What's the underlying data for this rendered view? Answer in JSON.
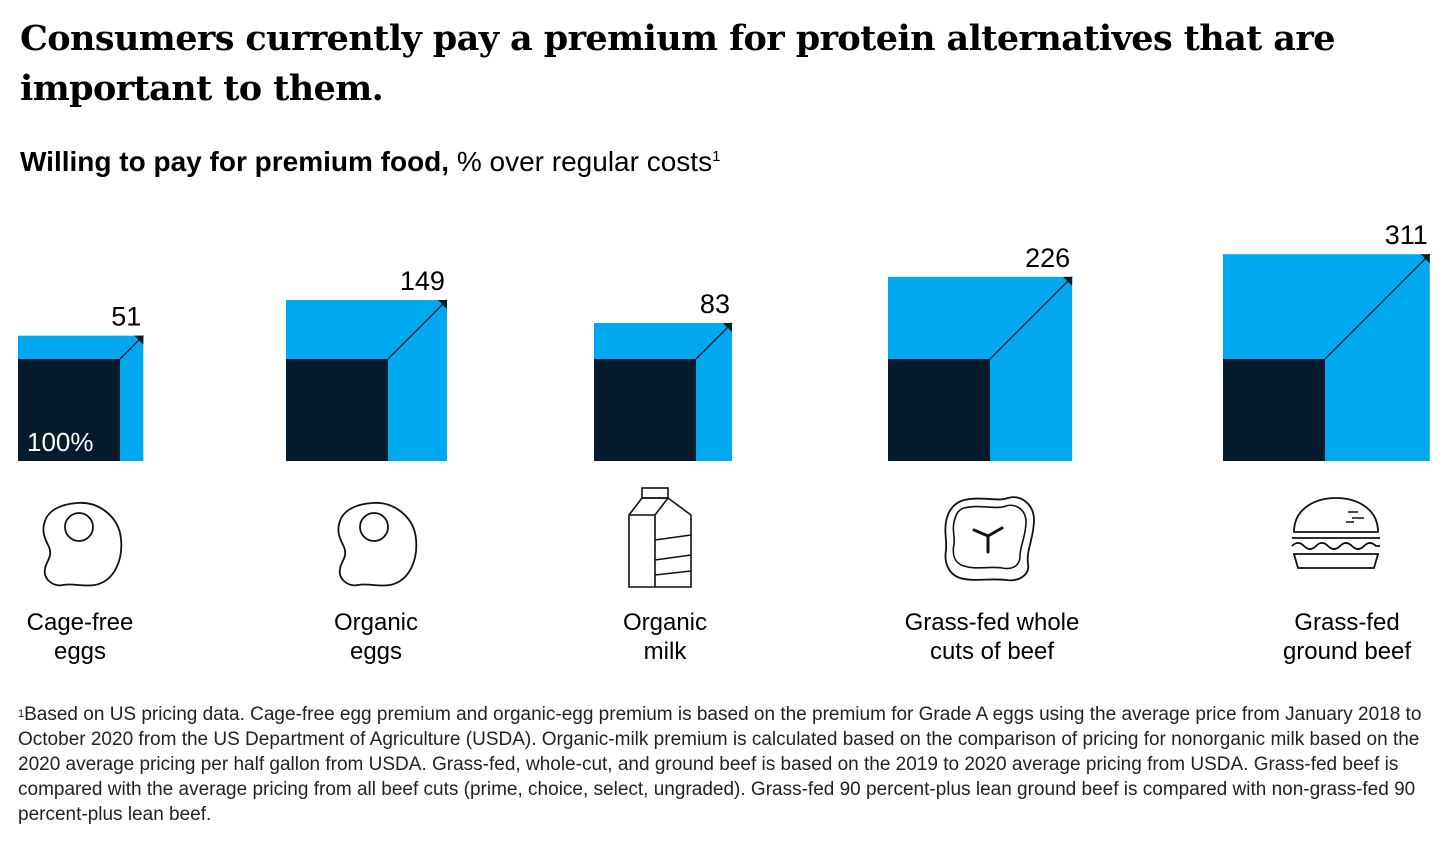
{
  "title": "Consumers currently pay a premium for protein alternatives that are important to them.",
  "subtitle": {
    "bold": "Willing to pay for premium food,",
    "rest": " % over regular costs",
    "sup": "1"
  },
  "chart_data": {
    "type": "bar",
    "base_label": "100%",
    "base_value": 100,
    "categories": [
      "Cage-free eggs",
      "Organic eggs",
      "Organic milk",
      "Grass-fed whole cuts of beef",
      "Grass-fed ground beef"
    ],
    "label_lines": [
      [
        "Cage-free",
        "eggs"
      ],
      [
        "Organic",
        "eggs"
      ],
      [
        "Organic",
        "milk"
      ],
      [
        "Grass-fed whole",
        "cuts of beef"
      ],
      [
        "Grass-fed",
        "ground beef"
      ]
    ],
    "values": [
      51,
      149,
      83,
      226,
      311
    ],
    "icons": [
      "fried-egg-icon",
      "fried-egg-icon",
      "milk-carton-icon",
      "steak-icon",
      "burger-icon"
    ],
    "colors": {
      "base": "#061c2c",
      "premium": "#00a8f0"
    }
  },
  "footnote": {
    "sup": "1",
    "text": "Based on US pricing data. Cage-free egg premium and organic-egg premium is based on the premium for Grade A eggs using the average price from January 2018 to October 2020 from the US Department of Agriculture (USDA). Organic-milk premium is calculated based on the comparison of pricing for nonorganic milk based on the 2020 average pricing per half gallon from USDA. Grass-fed, whole-cut, and ground beef is based on the 2019 to 2020 average pricing from USDA. Grass-fed beef is compared with the average pricing from all beef cuts (prime, choice, select, ungraded). Grass-fed 90 percent-plus lean ground beef is compared with non-grass-fed 90 percent-plus lean beef."
  }
}
